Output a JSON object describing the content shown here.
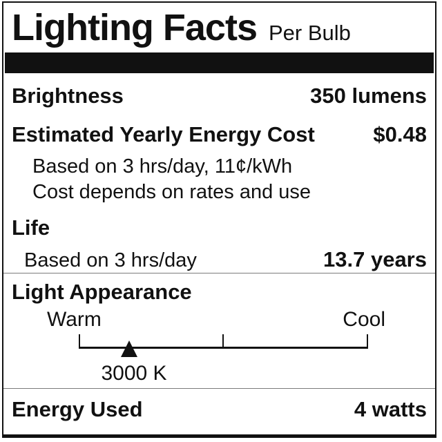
{
  "label": {
    "title": "Lighting Facts",
    "per": "Per Bulb",
    "brightness": {
      "name": "Brightness",
      "value": "350 lumens"
    },
    "energy_cost": {
      "name": "Estimated Yearly Energy Cost",
      "value": "$0.48",
      "notes": [
        "Based on 3 hrs/day, 11¢/kWh",
        "Cost depends on rates and use"
      ]
    },
    "life": {
      "name": "Life",
      "basis": "Based on 3 hrs/day",
      "value": "13.7 years"
    },
    "light_appearance": {
      "name": "Light Appearance",
      "left_label": "Warm",
      "right_label": "Cool",
      "marker": "3000 K"
    },
    "energy_used": {
      "name": "Energy Used",
      "value": "4 watts"
    }
  },
  "colors": {
    "ink": "#111111",
    "hairline": "#7a7a7a",
    "background": "#ffffff"
  }
}
